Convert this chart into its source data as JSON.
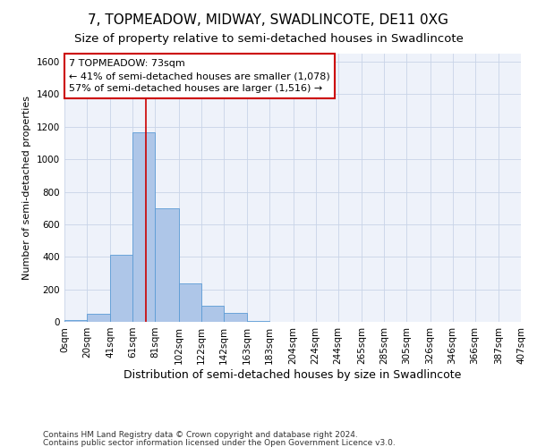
{
  "title": "7, TOPMEADOW, MIDWAY, SWADLINCOTE, DE11 0XG",
  "subtitle": "Size of property relative to semi-detached houses in Swadlincote",
  "xlabel": "Distribution of semi-detached houses by size in Swadlincote",
  "ylabel": "Number of semi-detached properties",
  "footer1": "Contains HM Land Registry data © Crown copyright and database right 2024.",
  "footer2": "Contains public sector information licensed under the Open Government Licence v3.0.",
  "annotation_title": "7 TOPMEADOW: 73sqm",
  "annotation_line1": "← 41% of semi-detached houses are smaller (1,078)",
  "annotation_line2": "57% of semi-detached houses are larger (1,516) →",
  "property_size": 73,
  "bin_edges": [
    0,
    20,
    41,
    61,
    81,
    102,
    122,
    142,
    163,
    183,
    204,
    224,
    244,
    265,
    285,
    305,
    326,
    346,
    366,
    387,
    407
  ],
  "bar_values": [
    10,
    50,
    415,
    1165,
    700,
    235,
    100,
    55,
    5,
    0,
    0,
    0,
    0,
    0,
    0,
    0,
    0,
    0,
    0,
    0
  ],
  "bar_color": "#aec6e8",
  "bar_edge_color": "#5b9bd5",
  "vline_color": "#cc0000",
  "vline_x": 73,
  "ylim": [
    0,
    1650
  ],
  "yticks": [
    0,
    200,
    400,
    600,
    800,
    1000,
    1200,
    1400,
    1600
  ],
  "grid_color": "#c8d4e8",
  "bg_color": "#eef2fa",
  "annotation_box_color": "#ffffff",
  "annotation_box_edge": "#cc0000",
  "title_fontsize": 11,
  "subtitle_fontsize": 9.5,
  "xlabel_fontsize": 9,
  "ylabel_fontsize": 8,
  "tick_fontsize": 7.5,
  "annotation_fontsize": 8
}
